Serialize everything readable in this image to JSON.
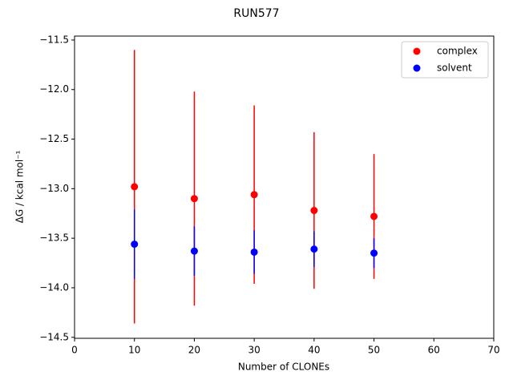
{
  "chart_data": {
    "type": "errorbar-scatter",
    "title": "RUN577",
    "xlabel": "Number of CLONEs",
    "ylabel": "ΔG / kcal mol⁻¹",
    "x": [
      10,
      20,
      30,
      40,
      50
    ],
    "series": [
      {
        "name": "complex",
        "color": "#ff0000",
        "values": [
          -12.98,
          -13.1,
          -13.06,
          -13.22,
          -13.28
        ],
        "errors": [
          1.38,
          1.08,
          0.9,
          0.79,
          0.63
        ]
      },
      {
        "name": "solvent",
        "color": "#0000ff",
        "values": [
          -13.56,
          -13.63,
          -13.64,
          -13.61,
          -13.65
        ],
        "errors": [
          0.35,
          0.25,
          0.22,
          0.18,
          0.15
        ]
      }
    ],
    "xlim": [
      0,
      70
    ],
    "xticks": [
      0,
      10,
      20,
      30,
      40,
      50,
      60,
      70
    ],
    "ylim": [
      -14.51,
      -11.46
    ],
    "yticks": [
      {
        "value": -14.5,
        "label": "−14.5"
      },
      {
        "value": -14.0,
        "label": "−14.0"
      },
      {
        "value": -13.5,
        "label": "−13.5"
      },
      {
        "value": -13.0,
        "label": "−13.0"
      },
      {
        "value": -12.5,
        "label": "−12.5"
      },
      {
        "value": -12.0,
        "label": "−12.0"
      },
      {
        "value": -11.5,
        "label": "−11.5"
      }
    ],
    "legend": "upper right"
  }
}
